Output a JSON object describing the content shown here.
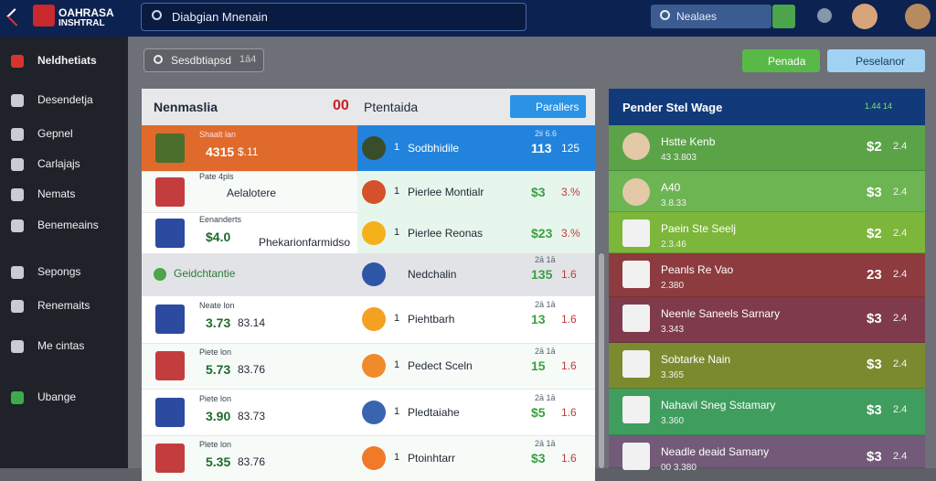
{
  "header": {
    "brand_line1": "OAHRASA",
    "brand_line2": "INSHTRAL",
    "search": "Diabgian Mnenain",
    "right_search": "Nealaes"
  },
  "sidebar": {
    "items": [
      "Neldhetiats",
      "Desendetja",
      "Gepnel",
      "Carlajajs",
      "Nemats",
      "Benemeains",
      "Sepongs",
      "Renemaits",
      "Me cintas",
      "Ubange"
    ]
  },
  "toolbar": {
    "search_chip": "Sesdbtiapsd",
    "search_chip_tag": "1ā4",
    "button_green": "Penada",
    "button_blue": "Peselanor"
  },
  "middle": {
    "title": "Nenmaslia",
    "score": "00",
    "name": "Ptentaida",
    "button": "Parallers",
    "rows": [
      {
        "label": "Shaalt lan",
        "odds_a": "4315",
        "odds_b": "$.11",
        "right_small": "2ii  6.6",
        "right_name": "Sodbhidile",
        "right_num": "1",
        "v1": "113",
        "v2": "125"
      },
      {
        "label": "Pate 4pls",
        "left_name": "Aelalotere",
        "right_name": "Pierlee Montialr",
        "right_num": "1",
        "v1": "$3",
        "v2": "3.%"
      },
      {
        "label": "Eenanderts",
        "odds_a": "$4.0",
        "left_name": "Phekarionfarmidso",
        "right_name": "Pierlee Reonas",
        "right_num": "1",
        "v1": "$23",
        "v2": "3.%"
      },
      {
        "section": "Geidchtantie",
        "right_small": "2ā  1ā",
        "right_name": "Nedchalin",
        "v1": "135",
        "v2": "1.6"
      },
      {
        "label": "Neate lon",
        "odds_a": "3.73",
        "odds_b": "83.14",
        "right_small": "2ā  1ā",
        "right_name": "Piehtbarh",
        "right_num": "1",
        "v1": "13",
        "v2": "1.6"
      },
      {
        "label": "Piete lon",
        "odds_a": "5.73",
        "odds_b": "83.76",
        "right_small": "2ā  1ā",
        "right_name": "Pedect Sceln",
        "right_num": "1",
        "v1": "15",
        "v2": "1.6"
      },
      {
        "label": "Piete lon",
        "odds_a": "3.90",
        "odds_b": "83.73",
        "right_small": "2ā  1ā",
        "right_name": "Pledtaiahe",
        "right_num": "1",
        "v1": "$5",
        "v2": "1.6"
      },
      {
        "label": "Plete lon",
        "odds_a": "5.35",
        "odds_b": "83.76",
        "right_small": "2ā  1ā",
        "right_name": "Ptoinhtarr",
        "right_num": "1",
        "v1": "$3",
        "v2": "1.6"
      }
    ]
  },
  "right_panel": {
    "title": "Pender Stel Wage",
    "pill": "1.44 14",
    "rows": [
      {
        "name": "Hstte Kenb",
        "sub": "43  3.803",
        "v1": "$2",
        "v2": "2.4",
        "color": "#5aa447"
      },
      {
        "name": "A40",
        "sub": "3.8.33",
        "v1": "$3",
        "v2": "2.4",
        "color": "#6db552"
      },
      {
        "name": "Paein Ste Seelj",
        "sub": "2.3.46",
        "v1": "$2",
        "v2": "2.4",
        "color": "#7cb63a"
      },
      {
        "name": "Peanls Re Vao",
        "sub": "2.380",
        "v1": "23",
        "v2": "2.4",
        "color": "#8e3b3f"
      },
      {
        "name": "Neenle Saneels Sarnary",
        "sub": "3.343",
        "v1": "$3",
        "v2": "2.4",
        "color": "#7f3a4c"
      },
      {
        "name": "Sobtarke Nain",
        "sub": "3.365",
        "v1": "$3",
        "v2": "2.4",
        "color": "#7c8a2f"
      },
      {
        "name": "Nahavil Sneg Sstamary",
        "sub": "3.360",
        "v1": "$3",
        "v2": "2.4",
        "color": "#3f9d5e"
      },
      {
        "name": "Neadle deaid Samany",
        "sub": "00 3.380",
        "v1": "$3",
        "v2": "2.4",
        "color": "#725a78"
      }
    ]
  }
}
